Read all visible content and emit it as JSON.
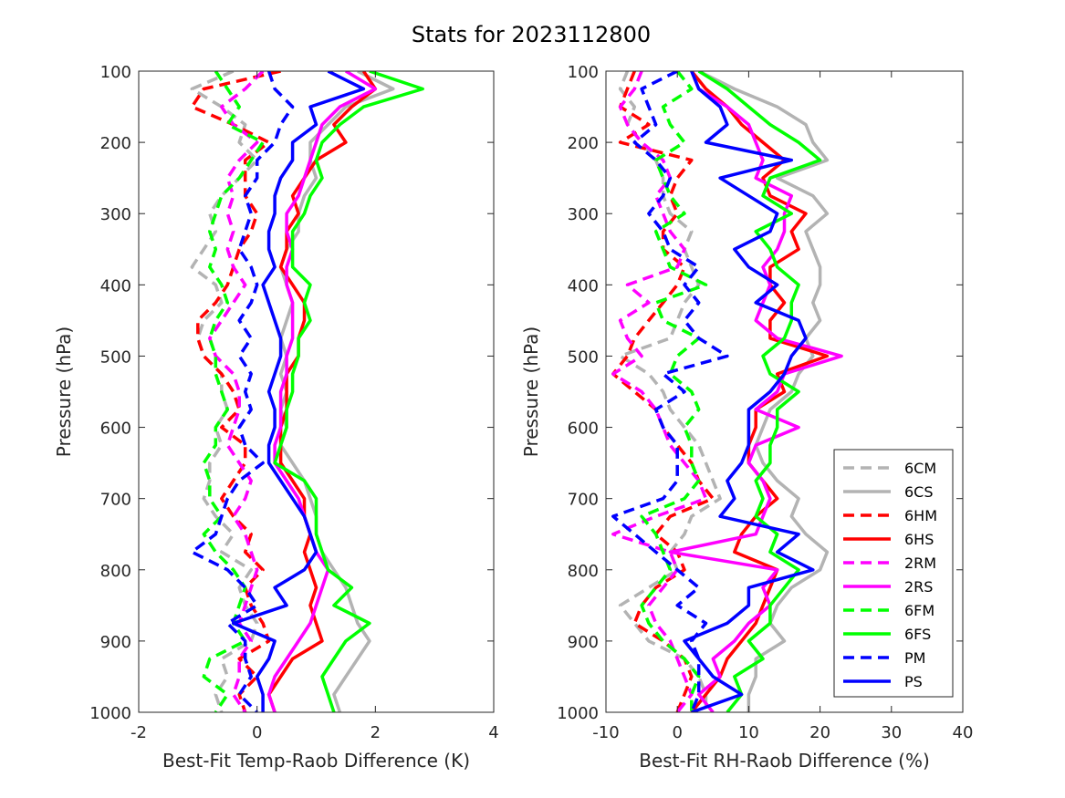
{
  "title": "Stats for 2023112800",
  "chart_data": [
    {
      "type": "line",
      "xlabel": "Best-Fit Temp-Raob Difference (K)",
      "ylabel": "Pressure (hPa)",
      "xlim": [
        -2,
        4
      ],
      "ylim": [
        100,
        1000
      ],
      "y_reversed": true,
      "x_ticks": [
        "-2",
        "0",
        "2",
        "4"
      ],
      "y_ticks": [
        "100",
        "200",
        "300",
        "400",
        "500",
        "600",
        "700",
        "800",
        "900",
        "1000"
      ],
      "pressure_levels": [
        100,
        125,
        150,
        175,
        200,
        225,
        250,
        275,
        300,
        325,
        350,
        375,
        400,
        425,
        450,
        475,
        500,
        525,
        550,
        575,
        600,
        625,
        650,
        675,
        700,
        725,
        750,
        775,
        800,
        825,
        850,
        875,
        900,
        925,
        950,
        975,
        1000
      ],
      "series": [
        {
          "name": "6CM",
          "values": [
            -0.4,
            -1.1,
            -0.6,
            -0.2,
            -0.3,
            0.0,
            -0.3,
            -0.6,
            -0.8,
            -0.7,
            -0.9,
            -1.1,
            -0.7,
            -0.6,
            -0.9,
            -1.0,
            -0.9,
            -0.6,
            -0.6,
            -0.5,
            -0.7,
            -0.6,
            -0.8,
            -0.8,
            -0.9,
            -0.7,
            -0.4,
            -0.6,
            -0.1,
            -0.3,
            -0.2,
            0.0,
            -0.1,
            -0.6,
            -0.5,
            -0.7,
            -0.6
          ]
        },
        {
          "name": "6CS",
          "values": [
            1.7,
            2.3,
            1.5,
            1.2,
            0.9,
            0.9,
            1.0,
            0.8,
            0.7,
            0.7,
            0.5,
            0.4,
            0.5,
            0.6,
            0.5,
            0.4,
            0.5,
            0.4,
            0.5,
            0.4,
            0.5,
            0.4,
            0.6,
            0.8,
            0.9,
            1.0,
            1.0,
            1.1,
            1.3,
            1.5,
            1.6,
            1.7,
            1.9,
            1.7,
            1.5,
            1.3,
            1.4
          ]
        },
        {
          "name": "6HM",
          "values": [
            0.4,
            -0.9,
            -1.1,
            -0.4,
            0.2,
            -0.2,
            -0.2,
            -0.2,
            0.0,
            -0.1,
            -0.3,
            -0.4,
            -0.5,
            -0.7,
            -1.0,
            -1.0,
            -0.9,
            -0.6,
            -0.4,
            -0.3,
            -0.6,
            -0.2,
            -0.2,
            -0.4,
            -0.6,
            -0.4,
            -0.1,
            -0.2,
            0.1,
            -0.2,
            -0.1,
            0.1,
            0.2,
            -0.3,
            0.0,
            -0.3,
            -0.2
          ]
        },
        {
          "name": "6HS",
          "values": [
            1.8,
            2.0,
            1.6,
            1.3,
            1.5,
            1.0,
            0.8,
            0.6,
            0.7,
            0.5,
            0.5,
            0.4,
            0.6,
            0.8,
            0.8,
            0.7,
            0.7,
            0.5,
            0.5,
            0.5,
            0.4,
            0.4,
            0.4,
            0.6,
            0.8,
            0.8,
            0.9,
            0.8,
            0.9,
            1.0,
            0.9,
            1.0,
            1.1,
            0.6,
            0.4,
            0.2,
            0.3
          ]
        },
        {
          "name": "2RM",
          "values": [
            0.1,
            -0.2,
            -0.6,
            -0.4,
            0.0,
            -0.3,
            -0.5,
            -0.4,
            -0.5,
            -0.4,
            -0.5,
            -0.4,
            -0.2,
            -0.4,
            -0.6,
            -0.8,
            -0.7,
            -0.4,
            -0.3,
            -0.3,
            -0.4,
            -0.5,
            -0.3,
            -0.1,
            -0.2,
            -0.4,
            -0.2,
            -0.1,
            0.0,
            -0.1,
            -0.2,
            -0.3,
            -0.1,
            -0.3,
            -0.3,
            -0.4,
            -0.2
          ]
        },
        {
          "name": "2RS",
          "values": [
            1.5,
            2.0,
            1.4,
            1.1,
            1.0,
            0.9,
            0.8,
            0.7,
            0.5,
            0.5,
            0.6,
            0.5,
            0.5,
            0.6,
            0.6,
            0.6,
            0.5,
            0.5,
            0.4,
            0.4,
            0.4,
            0.3,
            0.3,
            0.5,
            0.7,
            0.8,
            0.9,
            1.0,
            1.2,
            1.1,
            1.0,
            0.9,
            0.7,
            0.5,
            0.3,
            0.2,
            0.3
          ]
        },
        {
          "name": "6FM",
          "values": [
            -0.7,
            -0.5,
            -0.3,
            -0.5,
            0.1,
            -0.1,
            -0.3,
            -0.6,
            -0.7,
            -0.8,
            -0.7,
            -0.8,
            -0.6,
            -0.5,
            -0.7,
            -0.8,
            -0.7,
            -0.7,
            -0.6,
            -0.5,
            -0.7,
            -0.7,
            -0.9,
            -0.8,
            -0.8,
            -0.6,
            -0.9,
            -0.7,
            -0.4,
            -0.2,
            -0.3,
            -0.4,
            -0.2,
            -0.8,
            -0.9,
            -0.5,
            -0.7
          ]
        },
        {
          "name": "6FS",
          "values": [
            1.9,
            2.8,
            1.8,
            1.4,
            1.1,
            1.0,
            1.1,
            0.9,
            0.8,
            0.6,
            0.6,
            0.6,
            0.9,
            0.8,
            0.9,
            0.7,
            0.7,
            0.6,
            0.6,
            0.5,
            0.5,
            0.4,
            0.3,
            0.8,
            1.0,
            1.0,
            1.0,
            1.1,
            1.2,
            1.6,
            1.3,
            1.9,
            1.5,
            1.3,
            1.1,
            1.2,
            1.3
          ]
        },
        {
          "name": "PM",
          "values": [
            0.2,
            0.3,
            0.6,
            0.4,
            0.3,
            0.0,
            0.0,
            -0.2,
            -0.1,
            -0.2,
            -0.3,
            -0.1,
            0.0,
            -0.1,
            -0.3,
            -0.1,
            -0.3,
            -0.1,
            -0.2,
            -0.1,
            -0.3,
            -0.2,
            0.1,
            -0.3,
            -0.5,
            -0.6,
            -0.7,
            -1.1,
            -0.5,
            -0.2,
            0.0,
            -0.5,
            -0.2,
            -0.2,
            -0.1,
            -0.3,
            0.0
          ]
        },
        {
          "name": "PS",
          "values": [
            1.2,
            1.8,
            0.9,
            1.0,
            0.6,
            0.6,
            0.4,
            0.3,
            0.3,
            0.2,
            0.2,
            0.3,
            0.1,
            0.2,
            0.3,
            0.4,
            0.4,
            0.3,
            0.2,
            0.3,
            0.3,
            0.2,
            0.2,
            0.4,
            0.6,
            0.8,
            0.9,
            1.0,
            0.8,
            0.3,
            0.5,
            -0.4,
            0.3,
            0.2,
            0.0,
            0.1,
            0.1
          ]
        }
      ]
    },
    {
      "type": "line",
      "xlabel": "Best-Fit RH-Raob Difference (%)",
      "ylabel": "Pressure (hPa)",
      "xlim": [
        -10,
        40
      ],
      "ylim": [
        100,
        1000
      ],
      "y_reversed": true,
      "x_ticks": [
        "-10",
        "0",
        "10",
        "20",
        "30",
        "40"
      ],
      "y_ticks": [
        "100",
        "200",
        "300",
        "400",
        "500",
        "600",
        "700",
        "800",
        "900",
        "1000"
      ],
      "pressure_levels": [
        100,
        125,
        150,
        175,
        200,
        225,
        250,
        275,
        300,
        325,
        350,
        375,
        400,
        425,
        450,
        475,
        500,
        525,
        550,
        575,
        600,
        625,
        650,
        675,
        700,
        725,
        750,
        775,
        800,
        825,
        850,
        875,
        900,
        925,
        950,
        975,
        1000
      ],
      "legend_location": "lower-right",
      "series": [
        {
          "name": "6CM",
          "values": [
            -7,
            -8,
            -6,
            -7,
            -5,
            -3,
            -2,
            -2,
            -1,
            2,
            1,
            2,
            3,
            1,
            0,
            -1,
            -8,
            -4,
            -2,
            -1,
            1,
            3,
            4,
            5,
            6,
            2,
            1,
            -1,
            0,
            -4,
            -8,
            -6,
            -4,
            1,
            3,
            4,
            4
          ]
        },
        {
          "name": "6CS",
          "values": [
            3,
            8,
            14,
            18,
            19,
            21,
            14,
            19,
            21,
            18,
            19,
            20,
            20,
            19,
            20,
            18,
            19,
            17,
            16,
            13,
            12,
            11,
            12,
            14,
            17,
            16,
            18,
            21,
            20,
            16,
            14,
            13,
            15,
            11,
            11,
            10,
            10
          ]
        },
        {
          "name": "6HM",
          "values": [
            -6,
            -7,
            -8,
            -4,
            -8,
            2,
            0,
            -1,
            0,
            -2,
            -2,
            1,
            0,
            -2,
            -4,
            -6,
            -7,
            -9,
            -6,
            -3,
            -2,
            0,
            2,
            3,
            5,
            -1,
            -3,
            0,
            1,
            -3,
            -5,
            -6,
            -2,
            1,
            2,
            1,
            0
          ]
        },
        {
          "name": "6HS",
          "values": [
            2,
            4,
            7,
            9,
            12,
            15,
            12,
            13,
            18,
            16,
            17,
            13,
            13,
            15,
            13,
            13,
            21,
            14,
            15,
            11,
            11,
            10,
            10,
            12,
            14,
            11,
            9,
            8,
            14,
            13,
            12,
            11,
            9,
            7,
            6,
            4,
            2
          ]
        },
        {
          "name": "2RM",
          "values": [
            -5,
            -6,
            -8,
            -7,
            -5,
            -2,
            -1,
            -3,
            -2,
            -1,
            1,
            0,
            -7,
            -4,
            -8,
            -7,
            -5,
            -9,
            -5,
            -3,
            -2,
            -1,
            1,
            3,
            4,
            -3,
            -9,
            -1,
            0,
            -2,
            -4,
            -3,
            -1,
            0,
            1,
            2,
            0
          ]
        },
        {
          "name": "2RS",
          "values": [
            2,
            3,
            7,
            10,
            11,
            12,
            11,
            16,
            15,
            15,
            14,
            12,
            13,
            12,
            11,
            14,
            23,
            15,
            14,
            11,
            17,
            11,
            10,
            12,
            13,
            12,
            11,
            -1,
            14,
            12,
            13,
            10,
            8,
            5,
            6,
            3,
            5
          ]
        },
        {
          "name": "6FM",
          "values": [
            0,
            2,
            -2,
            -1,
            1,
            -3,
            -2,
            -1,
            1,
            -3,
            -2,
            -1,
            4,
            -3,
            -2,
            3,
            0,
            -1,
            2,
            3,
            1,
            2,
            2,
            3,
            1,
            -5,
            -3,
            -2,
            -1,
            -3,
            -5,
            -4,
            -2,
            1,
            3,
            2,
            2
          ]
        },
        {
          "name": "6FS",
          "values": [
            3,
            7,
            10,
            13,
            17,
            20,
            13,
            12,
            16,
            11,
            13,
            14,
            17,
            16,
            16,
            15,
            12,
            13,
            17,
            14,
            14,
            13,
            13,
            11,
            12,
            11,
            14,
            13,
            17,
            15,
            13,
            13,
            10,
            12,
            8,
            9,
            7
          ]
        },
        {
          "name": "PM",
          "values": [
            0,
            -5,
            -4,
            -3,
            -6,
            -3,
            -1,
            -2,
            -4,
            -2,
            -1,
            3,
            1,
            3,
            1,
            3,
            7,
            -2,
            1,
            -3,
            -2,
            0,
            0,
            0,
            -2,
            -9,
            -6,
            -3,
            0,
            3,
            0,
            4,
            2,
            3,
            3,
            3,
            2
          ]
        },
        {
          "name": "PS",
          "values": [
            2,
            3,
            6,
            7,
            4,
            16,
            6,
            10,
            14,
            13,
            8,
            10,
            14,
            11,
            17,
            18,
            16,
            15,
            13,
            10,
            10,
            10,
            9,
            7,
            8,
            6,
            17,
            14,
            19,
            10,
            10,
            7,
            1,
            3,
            5,
            9,
            2
          ]
        }
      ]
    }
  ],
  "legend": [
    {
      "name": "6CM",
      "color": "#b3b3b3",
      "dashed": true
    },
    {
      "name": "6CS",
      "color": "#b3b3b3",
      "dashed": false
    },
    {
      "name": "6HM",
      "color": "#ff0000",
      "dashed": true
    },
    {
      "name": "6HS",
      "color": "#ff0000",
      "dashed": false
    },
    {
      "name": "2RM",
      "color": "#ff00ff",
      "dashed": true
    },
    {
      "name": "2RS",
      "color": "#ff00ff",
      "dashed": false
    },
    {
      "name": "6FM",
      "color": "#00ff00",
      "dashed": true
    },
    {
      "name": "6FS",
      "color": "#00ff00",
      "dashed": false
    },
    {
      "name": "PM",
      "color": "#0000ff",
      "dashed": true
    },
    {
      "name": "PS",
      "color": "#0000ff",
      "dashed": false
    }
  ]
}
